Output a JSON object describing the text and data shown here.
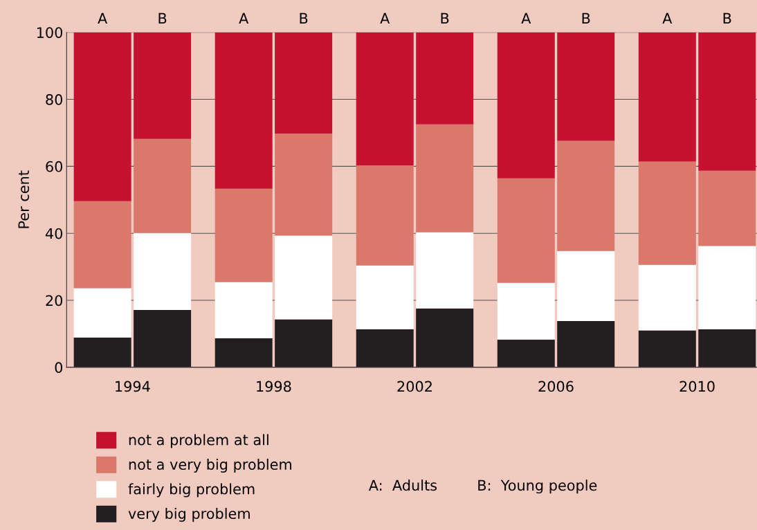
{
  "chart_data": {
    "type": "bar",
    "stacked": true,
    "ylabel": "Per cent",
    "categories": [
      "A",
      "B",
      "A",
      "B",
      "A",
      "B",
      "A",
      "B",
      "A",
      "B"
    ],
    "ylim": [
      0,
      100
    ],
    "yticks": [
      0,
      20,
      40,
      60,
      80,
      100
    ],
    "grid": "y",
    "legend": "bottom left",
    "series": [
      {
        "name": "very big problem",
        "color": "#231f20",
        "values": [
          8.9,
          17.1,
          8.7,
          14.3,
          11.4,
          17.6,
          8.3,
          13.8,
          11.0,
          11.4
        ]
      },
      {
        "name": "fairly big problem",
        "color": "#ffffff",
        "values": [
          14.7,
          23.0,
          16.7,
          25.0,
          19.0,
          22.7,
          16.9,
          20.9,
          19.6,
          24.8
        ]
      },
      {
        "name": "not a very big problem",
        "color": "#d9786b",
        "values": [
          26.0,
          28.1,
          27.9,
          30.5,
          29.9,
          32.2,
          31.2,
          32.9,
          30.8,
          22.5
        ]
      },
      {
        "name": "not a problem at all",
        "color": "#c41230",
        "values": [
          50.4,
          31.8,
          46.7,
          30.2,
          39.7,
          27.5,
          43.6,
          32.4,
          38.6,
          41.3
        ]
      }
    ],
    "annotations": [
      "1994",
      "1998",
      "2002",
      "2006",
      "2010",
      "A:  Adults",
      "B:  Young people"
    ]
  }
}
